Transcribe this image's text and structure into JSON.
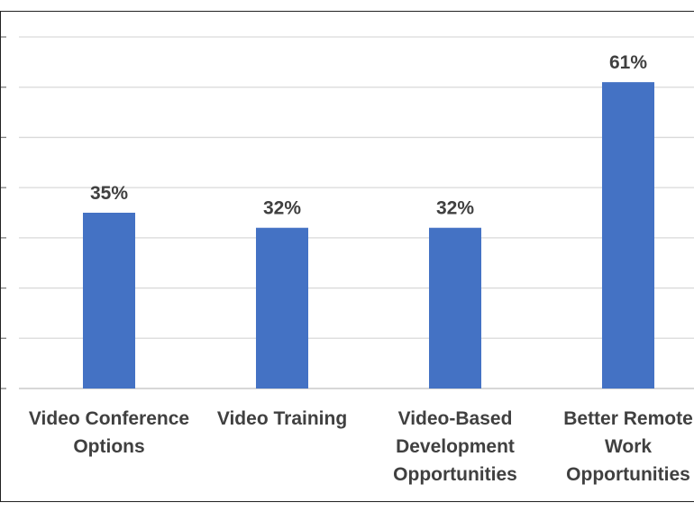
{
  "chart_data": {
    "type": "bar",
    "title": "",
    "xlabel": "",
    "ylabel": "",
    "categories": [
      [
        "Video Conference",
        "Options"
      ],
      [
        "Video Training"
      ],
      [
        "Video-Based",
        "Development",
        "Opportunities"
      ],
      [
        "Better Remote",
        "Work",
        "Opportunities"
      ]
    ],
    "values": [
      35,
      32,
      32,
      61
    ],
    "data_labels": [
      "35%",
      "32%",
      "32%",
      "61%"
    ],
    "ylim": [
      0,
      70
    ],
    "grid": true,
    "legend": "none",
    "bar_color": "#4472c4"
  }
}
